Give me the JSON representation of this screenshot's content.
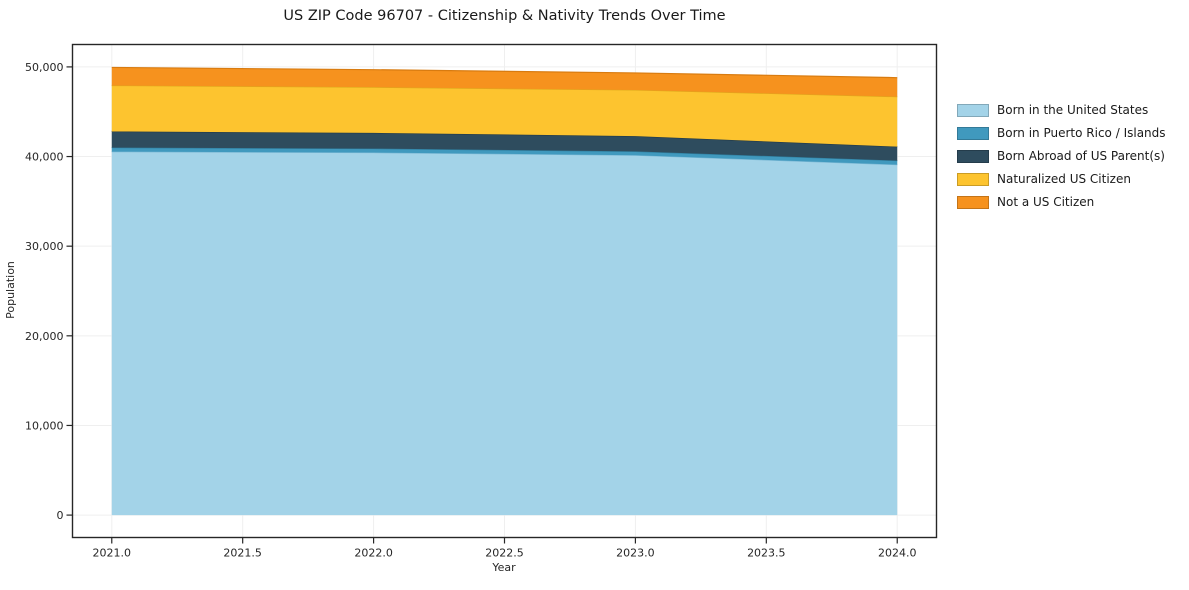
{
  "chart_data": {
    "type": "area",
    "stacked": true,
    "title": "US ZIP Code 96707 - Citizenship & Nativity Trends Over Time",
    "xlabel": "Year",
    "ylabel": "Population",
    "x": [
      2021,
      2022,
      2023,
      2024
    ],
    "series": [
      {
        "id": "born-in-us",
        "name": "Born in the United States",
        "color": "#a3d3e8",
        "edge": "#79b7d4",
        "values": [
          40550,
          40450,
          40150,
          39100
        ]
      },
      {
        "id": "born-in-pr-islands",
        "name": "Born in Puerto Rico / Islands",
        "color": "#4099be",
        "edge": "#2f7e9e",
        "values": [
          450,
          440,
          430,
          450
        ]
      },
      {
        "id": "born-abroad-us-parents",
        "name": "Born Abroad of US Parent(s)",
        "color": "#2e4c5e",
        "edge": "#223a48",
        "values": [
          1800,
          1750,
          1700,
          1550
        ]
      },
      {
        "id": "naturalized-us-citizen",
        "name": "Naturalized US Citizen",
        "color": "#fdc42f",
        "edge": "#dfa81c",
        "values": [
          5130,
          5100,
          5150,
          5580
        ]
      },
      {
        "id": "not-a-us-citizen",
        "name": "Not a US Citizen",
        "color": "#f6921e",
        "edge": "#d87b10",
        "values": [
          2010,
          1950,
          1900,
          2120
        ]
      }
    ],
    "xlim": [
      2020.85,
      2024.15
    ],
    "ylim": [
      -2500,
      52500
    ],
    "xticks": [
      {
        "value": 2021.0,
        "label": "2021.0"
      },
      {
        "value": 2021.5,
        "label": "2021.5"
      },
      {
        "value": 2022.0,
        "label": "2022.0"
      },
      {
        "value": 2022.5,
        "label": "2022.5"
      },
      {
        "value": 2023.0,
        "label": "2023.0"
      },
      {
        "value": 2023.5,
        "label": "2023.5"
      },
      {
        "value": 2024.0,
        "label": "2024.0"
      }
    ],
    "yticks": [
      {
        "value": 0,
        "label": "0"
      },
      {
        "value": 10000,
        "label": "10,000"
      },
      {
        "value": 20000,
        "label": "20,000"
      },
      {
        "value": 30000,
        "label": "30,000"
      },
      {
        "value": 40000,
        "label": "40,000"
      },
      {
        "value": 50000,
        "label": "50,000"
      }
    ],
    "grid": true,
    "legend_position": "right"
  }
}
